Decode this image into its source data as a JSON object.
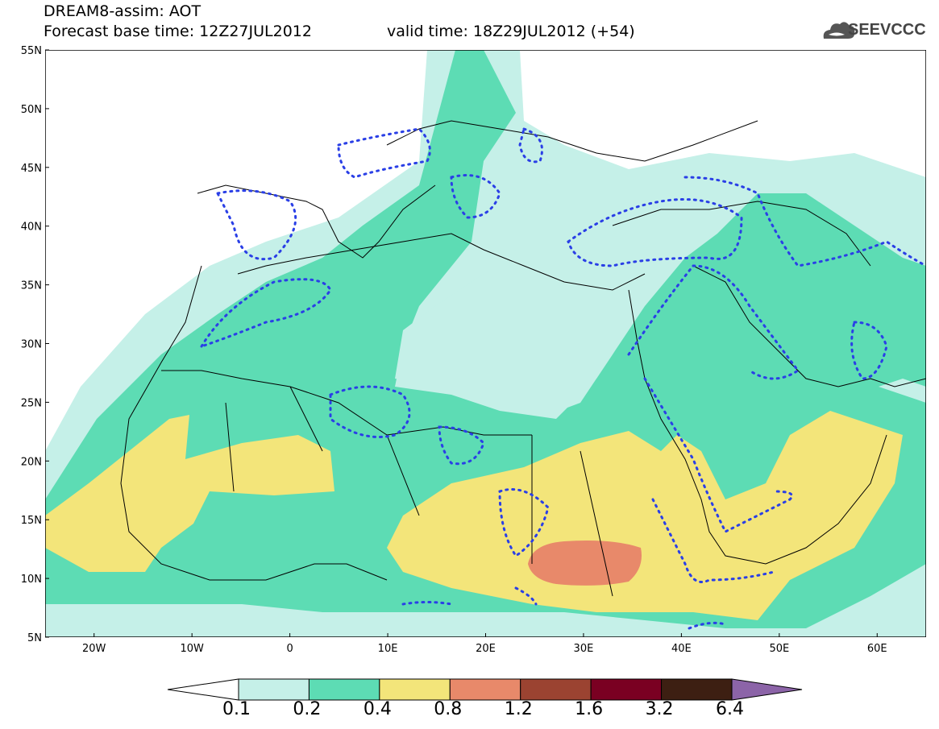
{
  "header": {
    "title_line1": "DREAM8-assim: AOT",
    "title_line2": "Forecast base time: 12Z27JUL2012",
    "valid_time": "valid time: 18Z29JUL2012 (+54)",
    "logo_text": "SEEVCCC"
  },
  "map": {
    "lat_labels": [
      "55N",
      "50N",
      "45N",
      "40N",
      "35N",
      "30N",
      "25N",
      "20N",
      "15N",
      "10N",
      "5N"
    ],
    "lon_labels": [
      "20W",
      "10W",
      "0",
      "10E",
      "20E",
      "30E",
      "40E",
      "50E",
      "60E"
    ],
    "extent": {
      "lon_min": -25,
      "lon_max": 65,
      "lat_min": 5,
      "lat_max": 55
    }
  },
  "colorbar": {
    "labels": [
      "0.1",
      "0.2",
      "0.4",
      "0.8",
      "1.2",
      "1.6",
      "3.2",
      "6.4"
    ],
    "colors": [
      "#ffffff",
      "#c5f0e8",
      "#5ddcb4",
      "#f3e57a",
      "#e8896a",
      "#9b4331",
      "#7a0022",
      "#3d1f12",
      "#8c64a8"
    ]
  },
  "legend_colors": {
    "level_01": "#c5f0e8",
    "level_02": "#5ddcb4",
    "level_04": "#f3e57a",
    "level_08": "#e8896a",
    "contour_dotted": "#2a3fe6"
  }
}
